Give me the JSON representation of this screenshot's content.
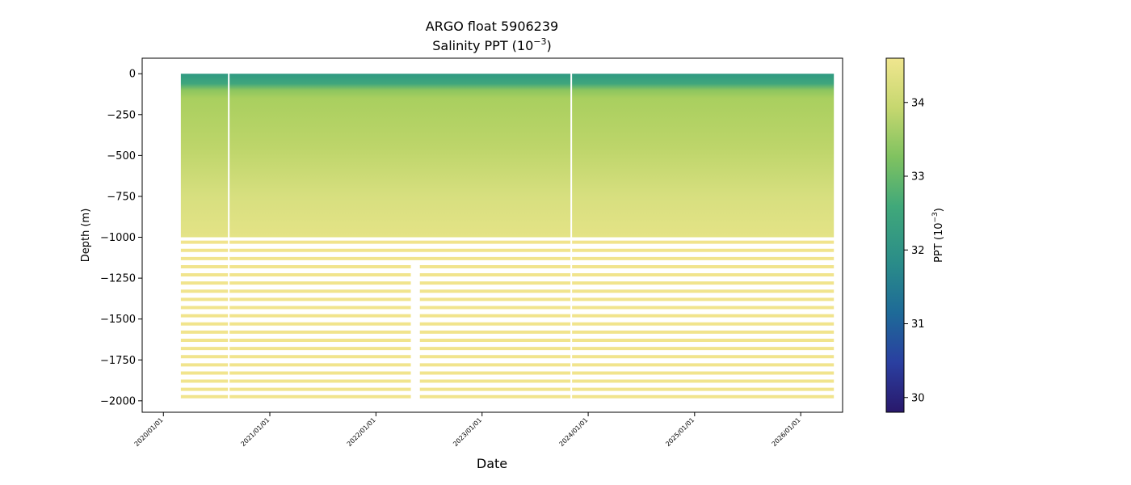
{
  "chart_data": {
    "type": "scatter",
    "title": "ARGO float 5906239",
    "subtitle_prefix": "Salinity PPT (10",
    "subtitle_exp": "−3",
    "subtitle_suffix": ")",
    "xlabel": "Date",
    "ylabel": "Depth (m)",
    "x_range": [
      "2019-10-20",
      "2026-05-25"
    ],
    "ylim": [
      -2070,
      95
    ],
    "y_ticks": [
      0,
      -250,
      -500,
      -750,
      -1000,
      -1250,
      -1500,
      -1750,
      -2000
    ],
    "y_tick_labels": [
      "0",
      "−250",
      "−500",
      "−750",
      "−1000",
      "−1250",
      "−1500",
      "−1750",
      "−2000"
    ],
    "x_ticks": [
      "2020-01-01",
      "2021-01-01",
      "2022-01-01",
      "2023-01-01",
      "2024-01-01",
      "2025-01-01",
      "2026-01-01"
    ],
    "x_tick_labels": [
      "2020/01/01",
      "2021/01/01",
      "2022/01/01",
      "2023/01/01",
      "2024/01/01",
      "2025/01/01",
      "2026/01/01"
    ],
    "data_start": "2020-03-01",
    "data_end": "2026-04-25",
    "profile_gaps": [
      {
        "start": "2020-08-10",
        "end": "2020-08-14"
      },
      {
        "start": "2023-11-01",
        "end": "2023-11-05"
      }
    ],
    "deep_gap": {
      "start": "2022-05-01",
      "end": "2022-06-01",
      "depth_below": -1150
    },
    "deep_levels": [
      -1030,
      -1080,
      -1130,
      -1180,
      -1230,
      -1280,
      -1330,
      -1380,
      -1430,
      -1480,
      -1530,
      -1580,
      -1630,
      -1680,
      -1730,
      -1780,
      -1830,
      -1880,
      -1930,
      -1975
    ],
    "salinity_profile": [
      {
        "depth": 0,
        "salinity": 32.4
      },
      {
        "depth": -50,
        "salinity": 32.6
      },
      {
        "depth": -100,
        "salinity": 33.3
      },
      {
        "depth": -150,
        "salinity": 33.6
      },
      {
        "depth": -250,
        "salinity": 33.75
      },
      {
        "depth": -500,
        "salinity": 33.95
      },
      {
        "depth": -750,
        "salinity": 34.15
      },
      {
        "depth": -1000,
        "salinity": 34.3
      },
      {
        "depth": -2000,
        "salinity": 34.55
      }
    ],
    "colorbar": {
      "label_prefix": "PPT (10",
      "label_exp": "−3",
      "label_suffix": ")",
      "vmin": 29.8,
      "vmax": 34.6,
      "ticks": [
        30,
        31,
        32,
        33,
        34
      ],
      "tick_labels": [
        "30",
        "31",
        "32",
        "33",
        "34"
      ],
      "colormap": "haline",
      "stops": [
        "#29186b",
        "#2a3fa0",
        "#1e6a98",
        "#2a8c89",
        "#40a87a",
        "#7fc260",
        "#c6d76f",
        "#f0e68f"
      ]
    }
  }
}
